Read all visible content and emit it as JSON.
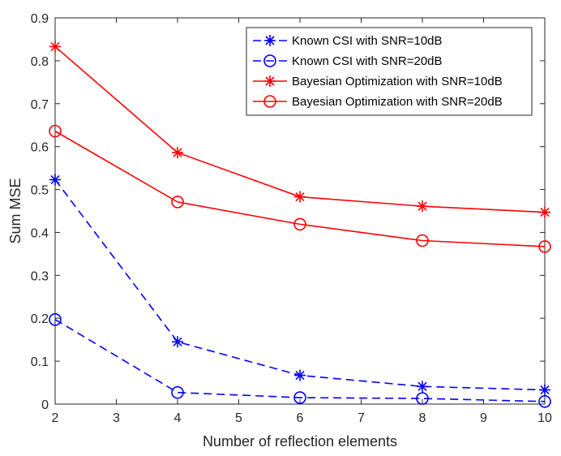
{
  "chart_data": {
    "type": "line",
    "title": "",
    "xlabel": "Number of reflection elements",
    "ylabel": "Sum MSE",
    "xlim": [
      2,
      10
    ],
    "ylim": [
      0,
      0.9
    ],
    "xticks": [
      2,
      3,
      4,
      5,
      6,
      7,
      8,
      9,
      10
    ],
    "yticks": [
      0,
      0.1,
      0.2,
      0.3,
      0.4,
      0.5,
      0.6,
      0.7,
      0.8,
      0.9
    ],
    "grid": false,
    "legend_position": "top-right",
    "x": [
      2,
      4,
      6,
      8,
      10
    ],
    "series": [
      {
        "name": "Known CSI with SNR=10dB",
        "values": [
          0.523,
          0.145,
          0.067,
          0.041,
          0.033
        ],
        "color": "#0000ff",
        "line_style": "dashed",
        "marker": "asterisk"
      },
      {
        "name": "Known CSI with SNR=20dB",
        "values": [
          0.197,
          0.027,
          0.015,
          0.013,
          0.006
        ],
        "color": "#0000ff",
        "line_style": "dashed",
        "marker": "circle"
      },
      {
        "name": "Bayesian Optimization with SNR=10dB",
        "values": [
          0.833,
          0.586,
          0.483,
          0.461,
          0.447
        ],
        "color": "#ff0000",
        "line_style": "solid",
        "marker": "asterisk"
      },
      {
        "name": "Bayesian Optimization with SNR=20dB",
        "values": [
          0.636,
          0.471,
          0.419,
          0.381,
          0.367
        ],
        "color": "#ff0000",
        "line_style": "solid",
        "marker": "circle"
      }
    ]
  }
}
